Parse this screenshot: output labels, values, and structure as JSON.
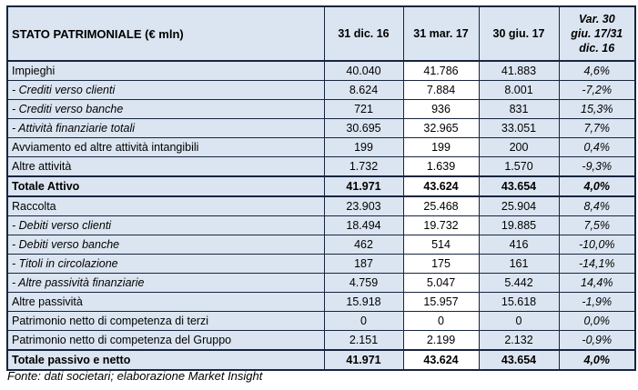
{
  "colors": {
    "cell_background": "#dbe5f1",
    "highlight_column_background": "#ffffff",
    "border": "#17253f",
    "text": "#000000"
  },
  "table": {
    "header": {
      "title": "STATO PATRIMONIALE (€ mln)",
      "columns": [
        "31 dic. 16",
        "31 mar. 17",
        "30 giu. 17",
        "Var. 30\ngiu. 17/31\ndic. 16"
      ]
    },
    "rows": [
      {
        "label": "Impieghi",
        "values": [
          "40.040",
          "41.786",
          "41.883",
          "4,6%"
        ],
        "style": "normal"
      },
      {
        "label": "- Crediti verso clienti",
        "values": [
          "8.624",
          "7.884",
          "8.001",
          "-7,2%"
        ],
        "style": "italic"
      },
      {
        "label": "- Crediti verso banche",
        "values": [
          "721",
          "936",
          "831",
          "15,3%"
        ],
        "style": "italic"
      },
      {
        "label": "- Attività finanziarie totali",
        "values": [
          "30.695",
          "32.965",
          "33.051",
          "7,7%"
        ],
        "style": "italic"
      },
      {
        "label": "Avviamento ed altre attività intangibili",
        "values": [
          "199",
          "199",
          "200",
          "0,4%"
        ],
        "style": "normal"
      },
      {
        "label": "Altre attività",
        "values": [
          "1.732",
          "1.639",
          "1.570",
          "-9,3%"
        ],
        "style": "normal"
      },
      {
        "label": "Totale Attivo",
        "values": [
          "41.971",
          "43.624",
          "43.654",
          "4,0%"
        ],
        "style": "bold"
      },
      {
        "label": "Raccolta",
        "values": [
          "23.903",
          "25.468",
          "25.904",
          "8,4%"
        ],
        "style": "normal"
      },
      {
        "label": "- Debiti verso clienti",
        "values": [
          "18.494",
          "19.732",
          "19.885",
          "7,5%"
        ],
        "style": "italic"
      },
      {
        "label": "- Debiti verso banche",
        "values": [
          "462",
          "514",
          "416",
          "-10,0%"
        ],
        "style": "italic"
      },
      {
        "label": "- Titoli in circolazione",
        "values": [
          "187",
          "175",
          "161",
          "-14,1%"
        ],
        "style": "italic"
      },
      {
        "label": "- Altre passività finanziarie",
        "values": [
          "4.759",
          "5.047",
          "5.442",
          "14,4%"
        ],
        "style": "italic"
      },
      {
        "label": "Altre passività",
        "values": [
          "15.918",
          "15.957",
          "15.618",
          "-1,9%"
        ],
        "style": "normal"
      },
      {
        "label": "Patrimonio netto di competenza di terzi",
        "values": [
          "0",
          "0",
          "0",
          "0,0%"
        ],
        "style": "normal"
      },
      {
        "label": "Patrimonio netto di competenza del Gruppo",
        "values": [
          "2.151",
          "2.199",
          "2.132",
          "-0,9%"
        ],
        "style": "normal"
      },
      {
        "label": "Totale passivo e netto",
        "values": [
          "41.971",
          "43.624",
          "43.654",
          "4,0%"
        ],
        "style": "bold"
      }
    ]
  },
  "footer": {
    "source_note": "Fonte: dati societari; elaborazione Market Insight"
  }
}
